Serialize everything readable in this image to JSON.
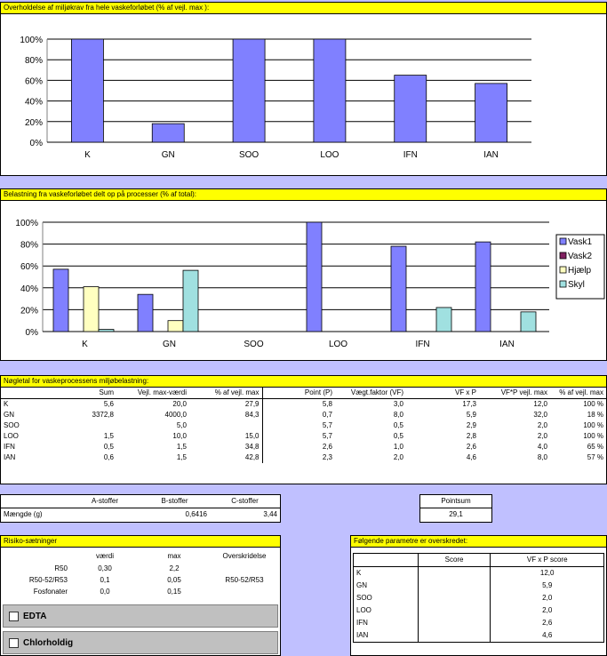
{
  "chart1": {
    "title": "Overholdelse af miljøkrav fra hele vaskeforløbet (% af vejl. max ):",
    "chart_data": {
      "type": "bar",
      "categories": [
        "K",
        "GN",
        "SOO",
        "LOO",
        "IFN",
        "IAN"
      ],
      "values": [
        100,
        18,
        100,
        100,
        65,
        57
      ],
      "ylim": [
        0,
        100
      ],
      "yticks": [
        "0%",
        "20%",
        "40%",
        "60%",
        "80%",
        "100%"
      ],
      "color": "#8080ff",
      "grid": true
    }
  },
  "chart2": {
    "title": "Belastning fra vaskeforløbet delt op på processer (% af total):",
    "chart_data": {
      "type": "bar",
      "categories": [
        "K",
        "GN",
        "SOO",
        "LOO",
        "IFN",
        "IAN"
      ],
      "series": [
        {
          "name": "Vask1",
          "color": "#8080ff",
          "values": [
            57,
            34,
            0,
            100,
            78,
            82
          ]
        },
        {
          "name": "Vask2",
          "color": "#802060",
          "values": [
            0,
            0,
            0,
            0,
            0,
            0
          ]
        },
        {
          "name": "Hjælp",
          "color": "#ffffc0",
          "values": [
            41,
            10,
            0,
            0,
            0,
            0
          ]
        },
        {
          "name": "Skyl",
          "color": "#a0e0e0",
          "values": [
            2,
            56,
            0,
            0,
            22,
            18
          ]
        }
      ],
      "ylim": [
        0,
        100
      ],
      "yticks": [
        "0%",
        "20%",
        "40%",
        "60%",
        "80%",
        "100%"
      ],
      "legend": "right",
      "grid": true
    }
  },
  "table1": {
    "title": "Nøgletal for vaskeprocessens miljøbelastning:",
    "headers": [
      "",
      "Sum",
      "Vejl. max-værdi",
      "% af vejl. max",
      "Point (P)",
      "Vægt.faktor (VF)",
      "VF x P",
      "VF*P vejl. max",
      "% af vejl. max"
    ],
    "rows": [
      [
        "K",
        "5,6",
        "20,0",
        "27,9",
        "5,8",
        "3,0",
        "17,3",
        "12,0",
        "100 %"
      ],
      [
        "GN",
        "3372,8",
        "4000,0",
        "84,3",
        "0,7",
        "8,0",
        "5,9",
        "32,0",
        "18 %"
      ],
      [
        "SOO",
        "",
        "5,0",
        "",
        "5,7",
        "0,5",
        "2,9",
        "2,0",
        "100 %"
      ],
      [
        "LOO",
        "1,5",
        "10,0",
        "15,0",
        "5,7",
        "0,5",
        "2,8",
        "2,0",
        "100 %"
      ],
      [
        "IFN",
        "0,5",
        "1,5",
        "34,8",
        "2,6",
        "1,0",
        "2,6",
        "4,0",
        "65 %"
      ],
      [
        "IAN",
        "0,6",
        "1,5",
        "42,8",
        "2,3",
        "2,0",
        "4,6",
        "8,0",
        "57 %"
      ]
    ]
  },
  "stoffer": {
    "headers": [
      "",
      "A-stoffer",
      "B-stoffer",
      "C-stoffer"
    ],
    "row": [
      "Mængde (g)",
      "",
      "0,6416",
      "3,44"
    ]
  },
  "pointsum": {
    "label": "Pointsum",
    "value": "29,1"
  },
  "risiko": {
    "title": "Risiko-sætninger",
    "headers": [
      "",
      "værdi",
      "max",
      "Overskridelse"
    ],
    "rows": [
      [
        "R50",
        "0,30",
        "2,2",
        ""
      ],
      [
        "R50-52/R53",
        "0,1",
        "0,05",
        "R50-52/R53"
      ],
      [
        "Fosfonater",
        "0,0",
        "0,15",
        ""
      ]
    ]
  },
  "checks": {
    "edta": "EDTA",
    "chlor": "Chlorholdig"
  },
  "params": {
    "title": "Følgende parametre er overskredet:",
    "headers": [
      "",
      "Score",
      "VF x P score"
    ],
    "rows": [
      [
        "K",
        "",
        "12,0"
      ],
      [
        "GN",
        "",
        "5,9"
      ],
      [
        "SOO",
        "",
        "2,0"
      ],
      [
        "LOO",
        "",
        "2,0"
      ],
      [
        "IFN",
        "",
        "2,6"
      ],
      [
        "IAN",
        "",
        "4,6"
      ]
    ]
  }
}
